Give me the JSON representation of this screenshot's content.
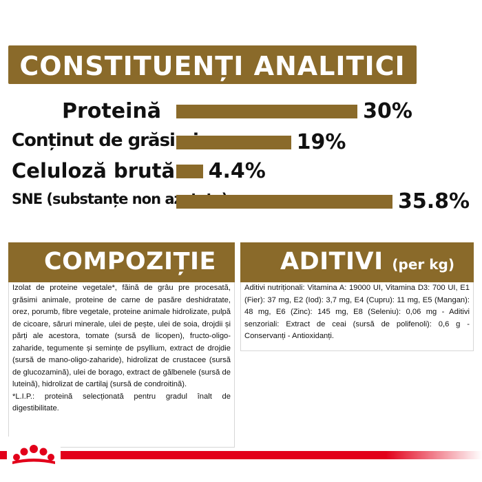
{
  "analytic_section": {
    "title": "CONSTITUENȚI ANALITICI",
    "rows": [
      {
        "label": "Proteină",
        "value": "30%"
      },
      {
        "label": "Conținut de grăsimi",
        "value": "19%"
      },
      {
        "label": "Celuloză brută",
        "value": "4.4%"
      },
      {
        "label": "SNE (substanțe non azotate)",
        "value": "35.8%"
      }
    ]
  },
  "chart_data": {
    "type": "bar",
    "orientation": "horizontal",
    "categories": [
      "Proteină",
      "Conținut de grăsimi",
      "Celuloză brută",
      "SNE (substanțe non azotate)"
    ],
    "values": [
      30,
      19,
      4.4,
      35.8
    ],
    "unit": "%"
  },
  "composition": {
    "title": "COMPOZIȚIE",
    "text": "Izolat de proteine vegetale*, făină de grâu pre procesată, grăsimi animale, proteine de carne de pasăre deshidratate, orez, porumb, fibre vegetale, proteine animale hidrolizate, pulpă de cicoare, săruri minerale, ulei de pește, ulei de soia, drojdii și părți ale acestora, tomate (sursă de licopen), fructo-oligo-zaharide, tegumente și semințe de psyllium, extract de drojdie (sursă de mano-oligo-zaharide), hidrolizat de crustacee (sursă de glucozamină), ulei de borago, extract de gălbenele (sursă de luteină), hidrolizat de cartilaj (sursă de condroitină).",
    "footnote": "*L.I.P.: proteină selecționată pentru gradul înalt de digestibilitate."
  },
  "additives": {
    "title": "ADITIVI",
    "subtitle": "(per kg)",
    "text": "Aditivi nutriționali: Vitamina A: 19000 UI, Vitamina D3: 700 UI, E1 (Fier): 37 mg, E2 (Iod): 3,7 mg, E4 (Cupru): 11 mg, E5 (Mangan): 48 mg, E6 (Zinc): 145 mg, E8 (Seleniu): 0,06 mg - Aditivi senzoriali: Extract de ceai (sursă de polifenoli): 0,6 g - Conservanți - Antioxidanți."
  },
  "colors": {
    "brand_brown": "#8a6a2a",
    "brand_red": "#e2001a",
    "logo_red": "#e2001a"
  },
  "logo": {
    "icon": "royal-canin-crown-icon"
  }
}
